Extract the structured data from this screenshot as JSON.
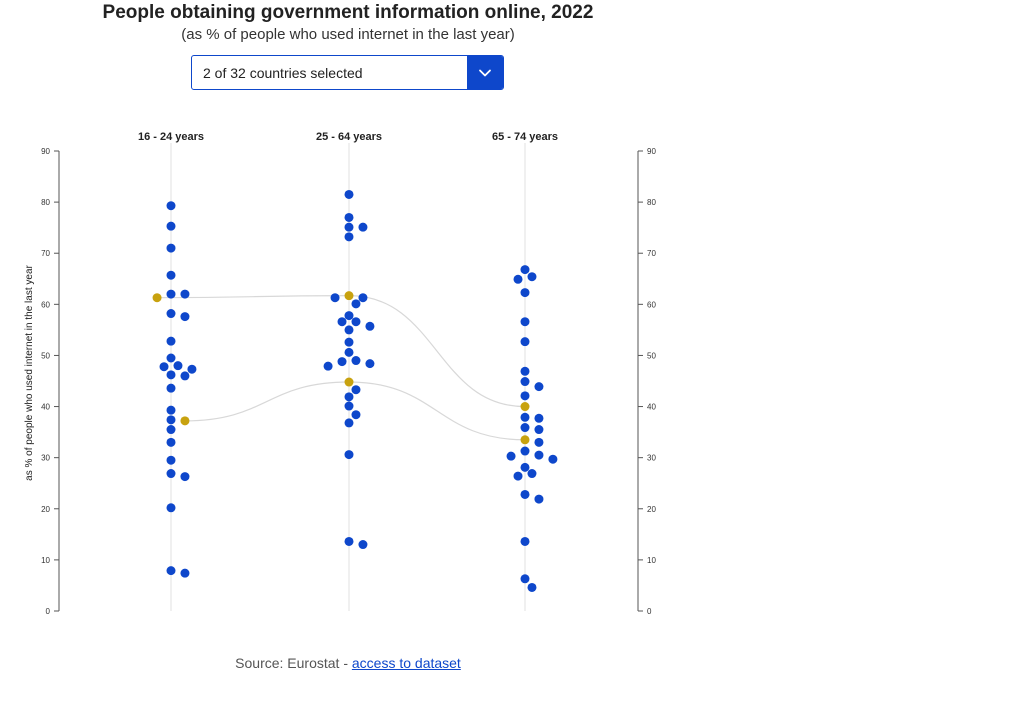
{
  "title": "People obtaining government information online, 2022",
  "subtitle": "(as % of people who used internet in the last year)",
  "selector": {
    "value": "2 of 32 countries selected",
    "icon": "chevron-down-icon"
  },
  "source": {
    "prefix": "Source: Eurostat - ",
    "link_text": "access to dataset"
  },
  "colors": {
    "dot": "#0e47cb",
    "highlight": "#c8a20f",
    "link_line": "#d8d8d8",
    "accent": "#0e47cb"
  },
  "chart_data": {
    "type": "scatter",
    "categories": [
      "16 - 24 years",
      "25 - 64 years",
      "65 - 74 years"
    ],
    "ylabel": "as % of people who used internet in the last year",
    "ylim": [
      0,
      90
    ],
    "yticks": [
      0,
      10,
      20,
      30,
      40,
      50,
      60,
      70,
      80,
      90
    ],
    "grid": false,
    "series": [
      {
        "values": [
          [
            79.3,
            75.3,
            71.0,
            65.7,
            62.0,
            62.0,
            58.2,
            57.6,
            52.8,
            49.5,
            48.0,
            47.8,
            47.3,
            46.2,
            46.0,
            43.6,
            39.3,
            37.4,
            35.5,
            33.0,
            29.5,
            26.9,
            26.3,
            20.2,
            7.9,
            7.4
          ],
          [
            81.5,
            77.0,
            75.1,
            75.1,
            73.2,
            61.3,
            61.3,
            60.1,
            57.8,
            56.6,
            56.6,
            55.7,
            55.0,
            52.6,
            50.6,
            49.0,
            48.8,
            48.4,
            47.9,
            43.3,
            41.9,
            40.1,
            38.4,
            36.8,
            30.6,
            13.6,
            13.0
          ],
          [
            66.8,
            65.4,
            64.9,
            62.3,
            56.6,
            52.7,
            46.9,
            44.9,
            43.9,
            42.1,
            37.9,
            37.7,
            35.9,
            35.5,
            33.0,
            31.3,
            30.5,
            30.3,
            29.7,
            28.1,
            26.9,
            26.4,
            22.8,
            21.9,
            13.6,
            6.3,
            4.6
          ]
        ]
      }
    ],
    "highlighted": [
      {
        "values": [
          61.3,
          61.7,
          40.0
        ]
      },
      {
        "values": [
          37.2,
          44.8,
          33.5
        ]
      }
    ]
  }
}
